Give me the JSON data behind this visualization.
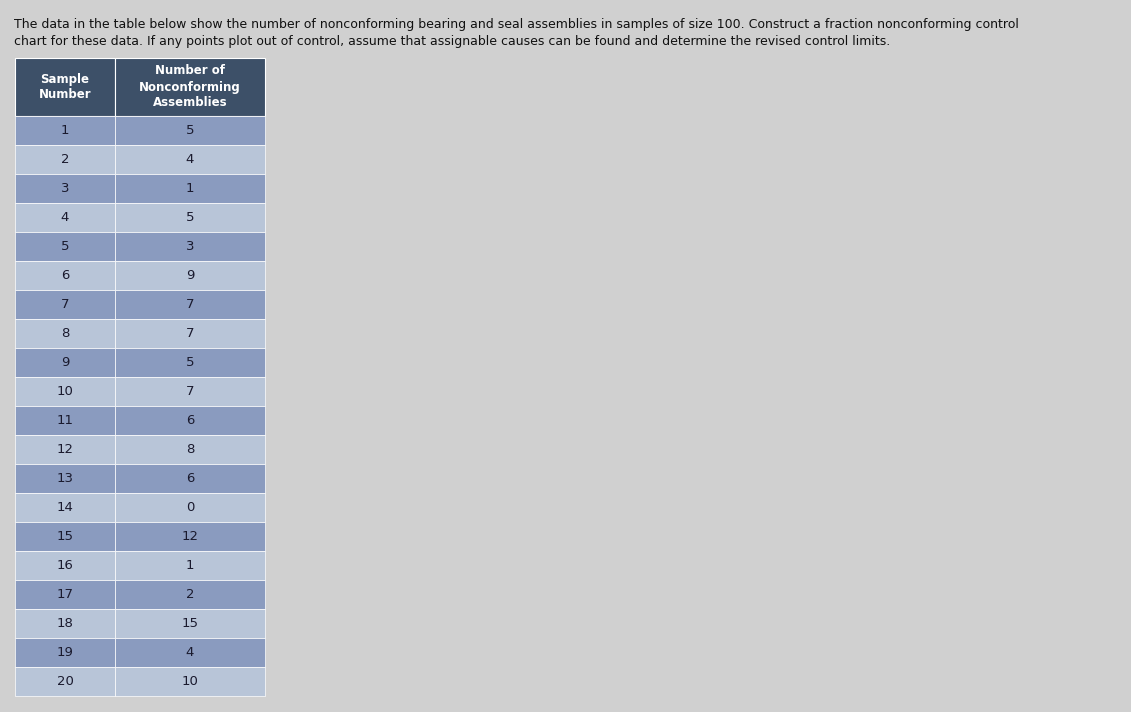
{
  "title_text": "The data in the table below show the number of nonconforming bearing and seal assemblies in samples of size 100. Construct a fraction nonconforming control\nchart for these data. If any points plot out of control, assume that assignable causes can be found and determine the revised control limits.",
  "col_headers": [
    "Sample\nNumber",
    "Number of\nNonconforming\nAssemblies"
  ],
  "sample_numbers": [
    1,
    2,
    3,
    4,
    5,
    6,
    7,
    8,
    9,
    10,
    11,
    12,
    13,
    14,
    15,
    16,
    17,
    18,
    19,
    20
  ],
  "nonconforming": [
    5,
    4,
    1,
    5,
    3,
    9,
    7,
    7,
    5,
    7,
    6,
    8,
    6,
    0,
    12,
    1,
    2,
    15,
    4,
    10
  ],
  "header_bg": "#3d5068",
  "row_dark_bg": "#8a9bbf",
  "row_light_bg": "#b8c5d8",
  "header_text_color": "#ffffff",
  "row_text_color": "#1a1a2e",
  "title_fontsize": 9.0,
  "header_fontsize": 8.5,
  "row_fontsize": 9.5,
  "bg_color": "#d0d0d0",
  "fig_width": 11.31,
  "fig_height": 7.12
}
